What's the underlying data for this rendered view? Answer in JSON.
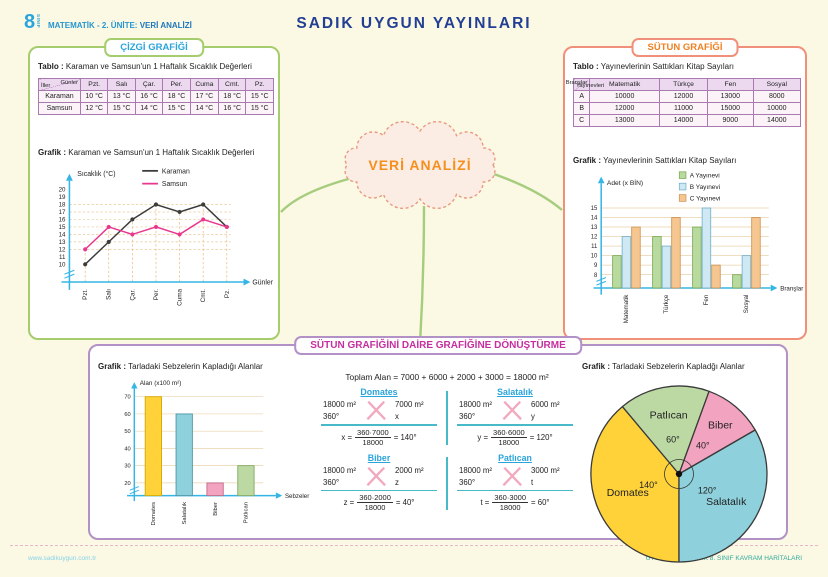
{
  "page": {
    "badge_number": "8",
    "badge_sub": "SINIF",
    "course_label": "MATEMATİK - 2. ÜNİTE:",
    "unit_label": "VERİ ANALİZİ",
    "publisher_title": "SADIK UYGUN YAYINLARI",
    "center_bubble": "VERİ ANALİZİ",
    "footer_left": "www.sadikuygun.com.tr",
    "footer_right": "UYGUN MATEMATİK 8. SINIF KAVRAM HARİTALARI",
    "colors": {
      "accent_blue": "#2aa4dc",
      "accent_orange": "#ef8123",
      "accent_magenta": "#c52f9e",
      "panel_green": "#a5cd6d",
      "panel_salmon": "#f0907a",
      "panel_purple": "#b291c6",
      "axis_cyan": "#35b5e6"
    }
  },
  "line_panel": {
    "title": "ÇİZGİ GRAFİĞİ",
    "table_label": "Tablo :",
    "table_caption": "Karaman ve Samsun'un 1 Haftalık Sıcaklık Değerleri",
    "table": {
      "corner_top": "Günler",
      "corner_bottom": "İller",
      "columns": [
        "Pzt.",
        "Salı",
        "Çar.",
        "Per.",
        "Cuma",
        "Cmt.",
        "Pz."
      ],
      "rows": [
        {
          "label": "Karaman",
          "values": [
            "10 °C",
            "13 °C",
            "16 °C",
            "18 °C",
            "17 °C",
            "18 °C",
            "15 °C"
          ]
        },
        {
          "label": "Samsun",
          "values": [
            "12 °C",
            "15 °C",
            "14 °C",
            "15 °C",
            "14 °C",
            "16 °C",
            "15 °C"
          ]
        }
      ]
    },
    "graph_label": "Grafik :",
    "graph_caption": "Karaman ve Samsun'un 1 Haftalık Sıcaklık Değerleri"
  },
  "bar_panel": {
    "title": "SÜTUN GRAFİĞİ",
    "table_label": "Tablo :",
    "table_caption": "Yayınevlerinin Sattıkları Kitap Sayıları",
    "table": {
      "corner_top": "Branşlar",
      "corner_bottom": "Yayınevleri",
      "columns": [
        "Matematik",
        "Türkçe",
        "Fen",
        "Sosyal"
      ],
      "rows": [
        {
          "label": "A",
          "values": [
            "10000",
            "12000",
            "13000",
            "8000"
          ]
        },
        {
          "label": "B",
          "values": [
            "12000",
            "11000",
            "15000",
            "10000"
          ]
        },
        {
          "label": "C",
          "values": [
            "13000",
            "14000",
            "9000",
            "14000"
          ]
        }
      ]
    },
    "graph_label": "Grafik :",
    "graph_caption": "Yayınevlerinin Sattıkları Kitap Sayıları"
  },
  "convert_panel": {
    "title": "SÜTUN GRAFİĞİNİ DAİRE GRAFİĞİNE DÖNÜŞTÜRME",
    "graph_label": "Grafik :",
    "bar_caption": "Tarladaki Sebzelerin Kapladığı Alanlar",
    "pie_caption": "Tarladaki Sebzelerin Kapladğı Alanlar",
    "total_formula": "Toplam Alan = 7000 + 6000 + 2000 + 3000 = 18000 m²",
    "calcs": [
      {
        "name": "Domates",
        "row1_left": "18000 m²",
        "row1_right": "7000 m²",
        "row2_left": "360°",
        "row2_right": "x",
        "result_lhs": "x =",
        "frac_num": "360·7000",
        "frac_den": "18000",
        "result_rhs": "= 140°"
      },
      {
        "name": "Salatalık",
        "row1_left": "18000 m²",
        "row1_right": "6000 m²",
        "row2_left": "360°",
        "row2_right": "y",
        "result_lhs": "y =",
        "frac_num": "360·6000",
        "frac_den": "18000",
        "result_rhs": "= 120°"
      },
      {
        "name": "Biber",
        "row1_left": "18000 m²",
        "row1_right": "2000 m²",
        "row2_left": "360°",
        "row2_right": "z",
        "result_lhs": "z =",
        "frac_num": "360·2000",
        "frac_den": "18000",
        "result_rhs": "= 40°"
      },
      {
        "name": "Patlıcan",
        "row1_left": "18000 m²",
        "row1_right": "3000 m²",
        "row2_left": "360°",
        "row2_right": "t",
        "result_lhs": "t =",
        "frac_num": "360·3000",
        "frac_den": "18000",
        "result_rhs": "= 60°"
      }
    ]
  },
  "chart_data": [
    {
      "id": "temperature_line",
      "type": "line",
      "title": "Karaman ve Samsun'un 1 Haftalık Sıcaklık Değerleri",
      "xlabel": "Günler",
      "ylabel": "Sıcaklık (°C)",
      "categories": [
        "Pzt.",
        "Salı",
        "Çar.",
        "Per.",
        "Cuma",
        "Cmt.",
        "Pz."
      ],
      "series": [
        {
          "name": "Karaman",
          "color": "#3c3c3c",
          "values": [
            10,
            13,
            16,
            18,
            17,
            18,
            15
          ]
        },
        {
          "name": "Samsun",
          "color": "#e8378e",
          "values": [
            12,
            15,
            14,
            15,
            14,
            16,
            15
          ]
        }
      ],
      "yticks": [
        10,
        11,
        12,
        13,
        14,
        15,
        16,
        17,
        18,
        19,
        20
      ],
      "ylim": [
        10,
        20
      ],
      "grid": "dashed",
      "legend_position": "top-right"
    },
    {
      "id": "book_sales_bar",
      "type": "bar",
      "title": "Yayınevlerinin Sattıkları Kitap Sayıları",
      "xlabel": "Branşlar",
      "ylabel": "Adet (x BİN)",
      "categories": [
        "Matematik",
        "Türkçe",
        "Fen",
        "Sosyal"
      ],
      "series": [
        {
          "name": "A Yayınevi",
          "color": "#b9da9e",
          "stroke": "#7ca953",
          "values": [
            10,
            12,
            13,
            8
          ]
        },
        {
          "name": "B Yayınevi",
          "color": "#cfe9f4",
          "stroke": "#74b2cc",
          "values": [
            12,
            11,
            15,
            10
          ]
        },
        {
          "name": "C Yayınevi",
          "color": "#f6c690",
          "stroke": "#cc9455",
          "values": [
            13,
            14,
            9,
            14
          ]
        }
      ],
      "yticks": [
        8,
        9,
        10,
        11,
        12,
        13,
        14,
        15
      ],
      "ylim": [
        8,
        15
      ],
      "grid": "solid",
      "legend_position": "top-right"
    },
    {
      "id": "vegetable_area_bar",
      "type": "bar",
      "title": "Tarladaki Sebzelerin Kapladığı Alanlar",
      "xlabel": "Sebzeler",
      "ylabel": "Alan (x100 m²)",
      "categories": [
        "Domates",
        "Salatalık",
        "Biber",
        "Patlıcan"
      ],
      "values": [
        70,
        60,
        20,
        30
      ],
      "colors": [
        "#ffd23a",
        "#8ed0dc",
        "#f2a3c0",
        "#bcd9a4"
      ],
      "strokes": [
        "#d4a900",
        "#4e98a8",
        "#c06a8a",
        "#82aa60"
      ],
      "yticks": [
        20,
        30,
        40,
        50,
        60,
        70
      ],
      "ylim": [
        0,
        70
      ],
      "grid": "solid"
    },
    {
      "id": "vegetable_area_pie",
      "type": "pie",
      "title": "Tarladaki Sebzelerin Kapladığı Alanlar",
      "start_angle_deg_from_top_cw": 180,
      "slices": [
        {
          "label": "Domates",
          "angle": 140,
          "color": "#ffd23a"
        },
        {
          "label": "Patlıcan",
          "angle": 60,
          "color": "#bcd9a4"
        },
        {
          "label": "Biber",
          "angle": 40,
          "color": "#f2a3c0"
        },
        {
          "label": "Salatalık",
          "angle": 120,
          "color": "#8ed0dc"
        }
      ]
    }
  ]
}
